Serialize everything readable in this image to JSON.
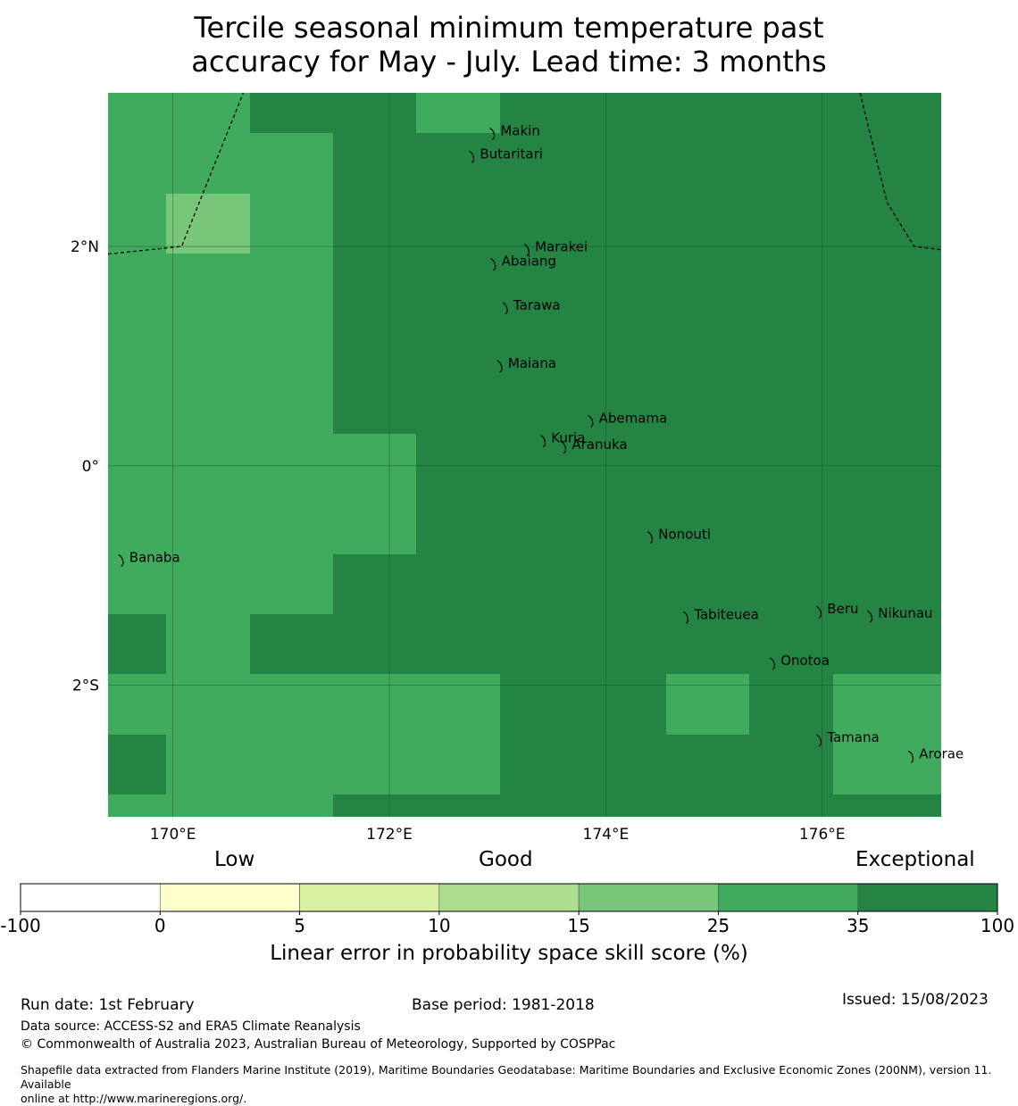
{
  "title": {
    "line1": "Tercile seasonal minimum temperature past",
    "line2": "accuracy for May - July. Lead time: 3 months"
  },
  "map": {
    "lon_range": [
      169.4,
      177.1
    ],
    "lat_range": [
      -3.2,
      3.4
    ],
    "cell_lon_step": 0.833,
    "cell_lat_step": 0.556,
    "category_colors": {
      "c15": "#78c679",
      "c25": "#41ab5d",
      "c35": "#238443"
    },
    "grid": [
      [
        "c25",
        "c25",
        "c35",
        "c35",
        "c25",
        "c35",
        "c35",
        "c35",
        "c35",
        "c35"
      ],
      [
        "c25",
        "c25",
        "c25",
        "c35",
        "c35",
        "c35",
        "c35",
        "c35",
        "c35",
        "c35"
      ],
      [
        "c25",
        "c15",
        "c25",
        "c35",
        "c35",
        "c35",
        "c35",
        "c35",
        "c35",
        "c35"
      ],
      [
        "c25",
        "c25",
        "c25",
        "c35",
        "c35",
        "c35",
        "c35",
        "c35",
        "c35",
        "c35"
      ],
      [
        "c25",
        "c25",
        "c25",
        "c35",
        "c35",
        "c35",
        "c35",
        "c35",
        "c35",
        "c35"
      ],
      [
        "c25",
        "c25",
        "c25",
        "c35",
        "c35",
        "c35",
        "c35",
        "c35",
        "c35",
        "c35"
      ],
      [
        "c25",
        "c25",
        "c25",
        "c25",
        "c35",
        "c35",
        "c35",
        "c35",
        "c35",
        "c35"
      ],
      [
        "c25",
        "c25",
        "c25",
        "c25",
        "c35",
        "c35",
        "c35",
        "c35",
        "c35",
        "c35"
      ],
      [
        "c25",
        "c25",
        "c25",
        "c35",
        "c35",
        "c35",
        "c35",
        "c35",
        "c35",
        "c35"
      ],
      [
        "c35",
        "c25",
        "c35",
        "c35",
        "c35",
        "c35",
        "c35",
        "c35",
        "c35",
        "c35"
      ],
      [
        "c25",
        "c25",
        "c25",
        "c25",
        "c25",
        "c35",
        "c35",
        "c25",
        "c35",
        "c25"
      ],
      [
        "c35",
        "c25",
        "c25",
        "c25",
        "c25",
        "c35",
        "c35",
        "c35",
        "c35",
        "c25"
      ],
      [
        "c25",
        "c25",
        "c25",
        "c35",
        "c35",
        "c35",
        "c35",
        "c35",
        "c35",
        "c35"
      ]
    ],
    "lon_ticks": [
      {
        "value": 170,
        "label": "170°E"
      },
      {
        "value": 172,
        "label": "172°E"
      },
      {
        "value": 174,
        "label": "174°E"
      },
      {
        "value": 176,
        "label": "176°E"
      }
    ],
    "lat_ticks": [
      {
        "value": 2,
        "label": "2°N"
      },
      {
        "value": 0,
        "label": "0°"
      },
      {
        "value": -2,
        "label": "2°S"
      }
    ],
    "eez_boundaries": [
      [
        [
          169.4,
          1.93
        ],
        [
          170.08,
          2.0
        ],
        [
          170.65,
          3.4
        ]
      ],
      [
        [
          176.35,
          3.4
        ],
        [
          176.6,
          2.4
        ],
        [
          176.85,
          2.0
        ],
        [
          177.1,
          1.97
        ]
      ]
    ],
    "islands": [
      {
        "name": "Makin",
        "lon": 172.96,
        "lat": 3.03
      },
      {
        "name": "Butaritari",
        "lon": 172.77,
        "lat": 2.82
      },
      {
        "name": "Marakei",
        "lon": 173.28,
        "lat": 1.97
      },
      {
        "name": "Abaiang",
        "lon": 172.97,
        "lat": 1.84
      },
      {
        "name": "Tarawa",
        "lon": 173.08,
        "lat": 1.44
      },
      {
        "name": "Maiana",
        "lon": 173.03,
        "lat": 0.91
      },
      {
        "name": "Abemama",
        "lon": 173.87,
        "lat": 0.41
      },
      {
        "name": "Kuria",
        "lon": 173.43,
        "lat": 0.23
      },
      {
        "name": "Aranuka",
        "lon": 173.62,
        "lat": 0.17
      },
      {
        "name": "Nonouti",
        "lon": 174.42,
        "lat": -0.65
      },
      {
        "name": "Banaba",
        "lon": 169.53,
        "lat": -0.86
      },
      {
        "name": "Tabiteuea",
        "lon": 174.75,
        "lat": -1.38
      },
      {
        "name": "Beru",
        "lon": 175.98,
        "lat": -1.33
      },
      {
        "name": "Nikunau",
        "lon": 176.45,
        "lat": -1.37
      },
      {
        "name": "Onotoa",
        "lon": 175.55,
        "lat": -1.8
      },
      {
        "name": "Tamana",
        "lon": 175.98,
        "lat": -2.5
      },
      {
        "name": "Arorae",
        "lon": 176.83,
        "lat": -2.65
      }
    ]
  },
  "colorbar": {
    "category_labels": [
      "Low",
      "Good",
      "Exceptional"
    ],
    "bins": [
      {
        "from": -100,
        "to": 0,
        "color": "#ffffff"
      },
      {
        "from": 0,
        "to": 5,
        "color": "#ffffcc"
      },
      {
        "from": 5,
        "to": 10,
        "color": "#d9f0a3"
      },
      {
        "from": 10,
        "to": 15,
        "color": "#addd8e"
      },
      {
        "from": 15,
        "to": 25,
        "color": "#78c679"
      },
      {
        "from": 25,
        "to": 35,
        "color": "#41ab5d"
      },
      {
        "from": 35,
        "to": 100,
        "color": "#238443"
      }
    ],
    "tick_labels": [
      "-100",
      "0",
      "5",
      "10",
      "15",
      "25",
      "35",
      "100"
    ],
    "label": "Linear error in probability space skill score (%)"
  },
  "footer": {
    "run_date": "Run date: 1st February",
    "base_period": "Base period: 1981-2018",
    "issued": "Issued: 15/08/2023",
    "data_source": "Data source: ACCESS-S2 and ERA5 Climate Reanalysis",
    "copyright": "© Commonwealth of Australia 2023, Australian Bureau of Meteorology, Supported by COSPPac",
    "shapefile_line1": "Shapefile data extracted from Flanders Marine Institute (2019), Maritime Boundaries Geodatabase: Maritime Boundaries and Exclusive Economic Zones (200NM), version 11. Available",
    "shapefile_line2": "online at http://www.marineregions.org/."
  }
}
